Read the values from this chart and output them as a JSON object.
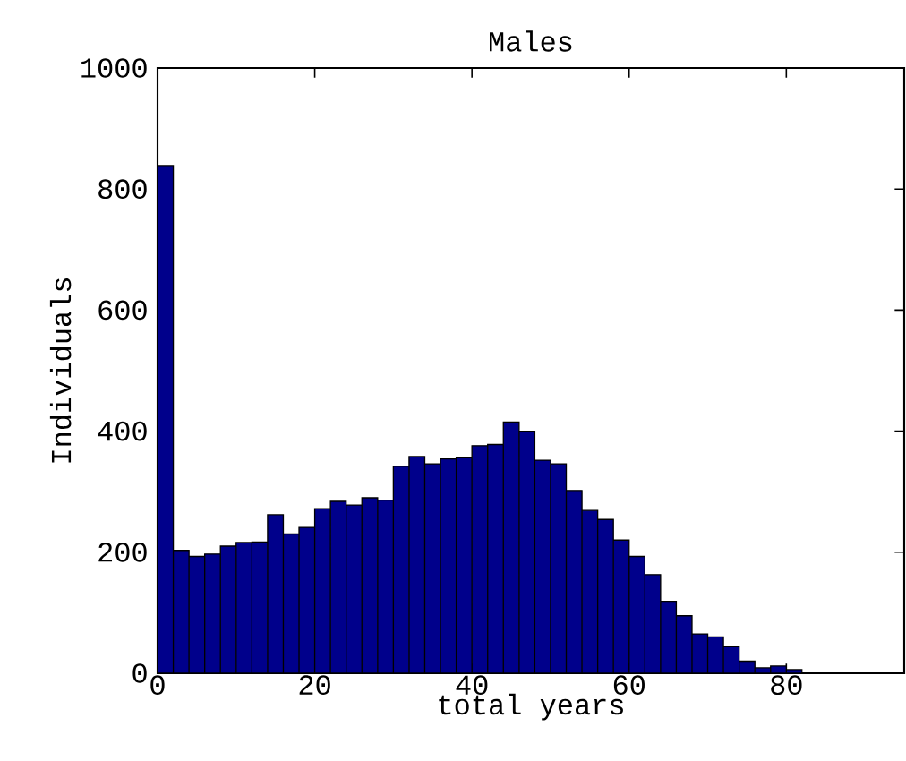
{
  "chart_data": {
    "type": "histogram",
    "title": "Males",
    "xlabel": "total years",
    "ylabel": "Individuals",
    "bins": [
      0,
      2,
      4,
      6,
      8,
      10,
      12,
      14,
      16,
      18,
      20,
      22,
      24,
      26,
      28,
      30,
      32,
      34,
      36,
      38,
      40,
      42,
      44,
      46,
      48,
      50,
      52,
      54,
      56,
      58,
      60,
      62,
      64,
      66,
      68,
      70,
      72,
      74,
      76,
      78,
      80,
      82
    ],
    "values": [
      839,
      203,
      193,
      197,
      210,
      216,
      217,
      262,
      230,
      241,
      272,
      284,
      278,
      290,
      286,
      342,
      358,
      346,
      354,
      356,
      376,
      378,
      415,
      400,
      352,
      346,
      302,
      269,
      254,
      220,
      193,
      163,
      119,
      95,
      65,
      60,
      44,
      20,
      9,
      12,
      6
    ],
    "color": "#00008b",
    "xlim": [
      0,
      95
    ],
    "ylim": [
      0,
      1000
    ],
    "xticks": [
      0,
      20,
      40,
      60,
      80
    ],
    "yticks": [
      0,
      200,
      400,
      600,
      800,
      1000
    ],
    "grid": false
  }
}
